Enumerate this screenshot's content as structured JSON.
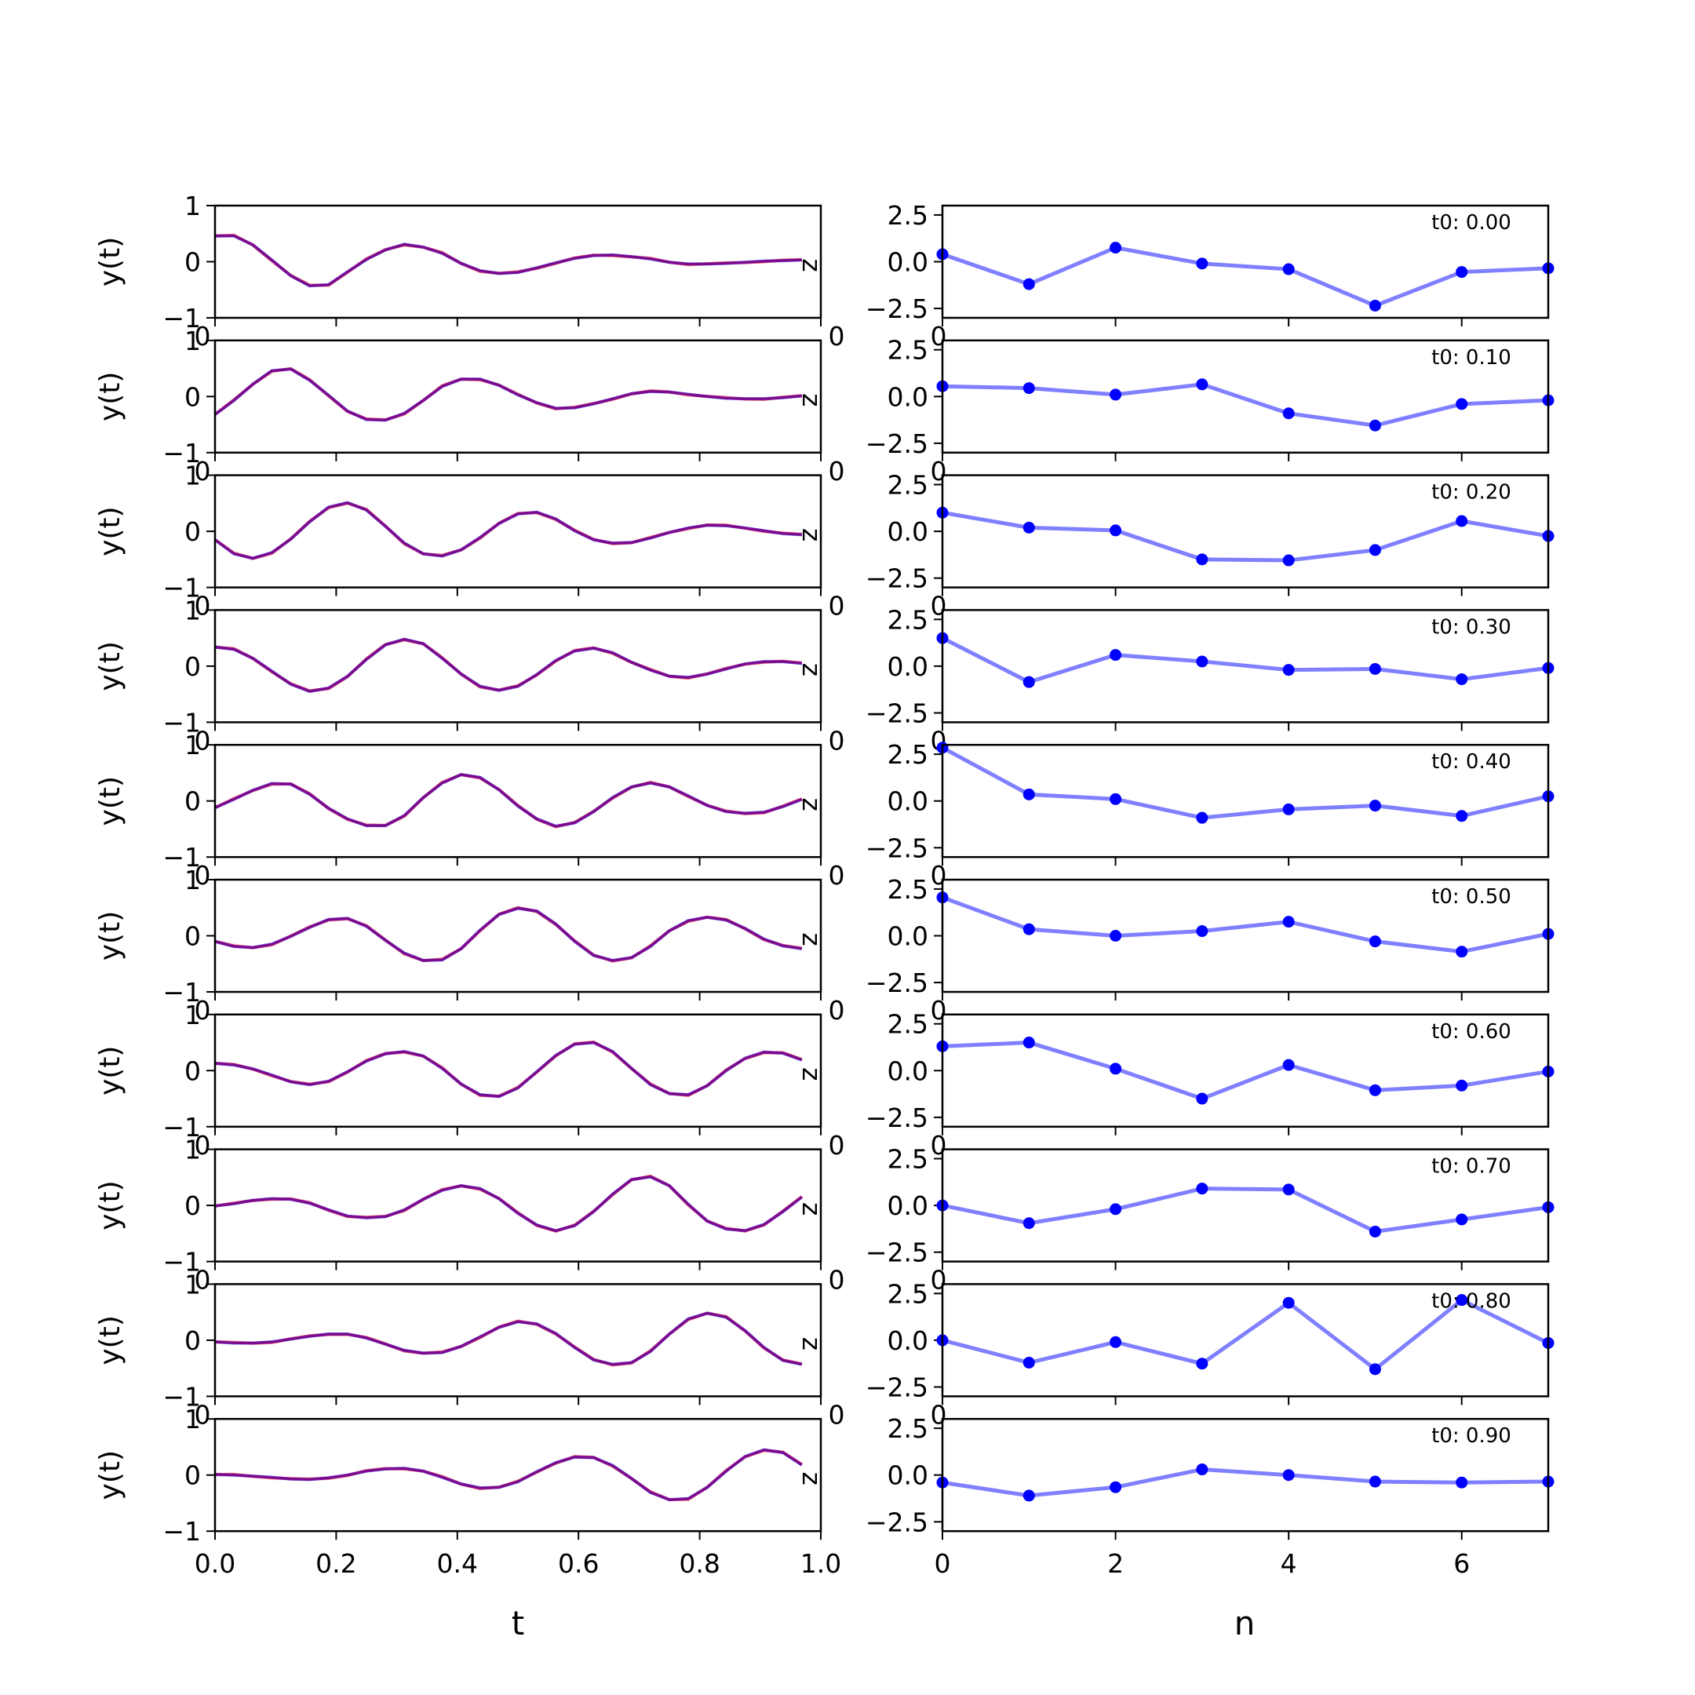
{
  "chart_data": {
    "type": "line",
    "left_panels": {
      "xlabel": "t",
      "ylabel": "y(t)",
      "xlim": [
        0.0,
        1.0
      ],
      "ylim": [
        -1,
        1
      ],
      "xticks": [
        "0.0",
        "0.2",
        "0.4",
        "0.6",
        "0.8",
        "1.0"
      ],
      "yticks": [
        "1",
        "0",
        "−1"
      ],
      "overlap_left_label": "0",
      "overlap_right_label": "0",
      "side_label": "z",
      "colors": {
        "first": "#0000ff",
        "second": "#ff0000",
        "blend": "#800080"
      },
      "rows": [
        {
          "y": [
            0.46,
            0.46,
            0.3,
            0.03,
            -0.25,
            -0.43,
            -0.41,
            -0.18,
            0.04,
            0.21,
            0.31,
            0.26,
            0.15,
            -0.03,
            -0.16,
            -0.21,
            -0.19,
            -0.11,
            -0.02,
            0.06,
            0.11,
            0.12,
            0.09,
            0.05,
            -0.01,
            -0.04,
            -0.04,
            -0.03,
            -0.01,
            0.01,
            0.02,
            0.03
          ]
        },
        {
          "y": [
            -0.32,
            -0.07,
            0.22,
            0.46,
            0.49,
            0.29,
            0.02,
            -0.26,
            -0.41,
            -0.42,
            -0.3,
            -0.07,
            0.18,
            0.31,
            0.31,
            0.2,
            0.03,
            -0.11,
            -0.21,
            -0.2,
            -0.13,
            -0.04,
            0.05,
            0.09,
            0.08,
            0.04,
            0.0,
            -0.03,
            -0.04,
            -0.04,
            -0.02,
            0.01
          ]
        },
        {
          "y": [
            -0.15,
            -0.4,
            -0.48,
            -0.38,
            -0.14,
            0.17,
            0.43,
            0.51,
            0.38,
            0.09,
            -0.21,
            -0.4,
            -0.44,
            -0.33,
            -0.11,
            0.14,
            0.31,
            0.34,
            0.22,
            0.01,
            -0.15,
            -0.21,
            -0.2,
            -0.12,
            -0.02,
            0.06,
            0.11,
            0.1,
            0.06,
            0.01,
            -0.04,
            -0.06
          ]
        },
        {
          "y": [
            0.34,
            0.3,
            0.14,
            -0.09,
            -0.32,
            -0.45,
            -0.39,
            -0.18,
            0.12,
            0.38,
            0.48,
            0.4,
            0.14,
            -0.14,
            -0.36,
            -0.43,
            -0.36,
            -0.15,
            0.1,
            0.27,
            0.32,
            0.24,
            0.07,
            -0.07,
            -0.18,
            -0.2,
            -0.14,
            -0.05,
            0.04,
            0.08,
            0.08,
            0.05
          ]
        },
        {
          "y": [
            -0.12,
            0.03,
            0.19,
            0.31,
            0.3,
            0.12,
            -0.13,
            -0.32,
            -0.44,
            -0.44,
            -0.26,
            0.06,
            0.32,
            0.47,
            0.42,
            0.2,
            -0.09,
            -0.32,
            -0.45,
            -0.39,
            -0.19,
            0.06,
            0.25,
            0.32,
            0.25,
            0.09,
            -0.08,
            -0.19,
            -0.22,
            -0.2,
            -0.1,
            0.03
          ]
        },
        {
          "y": [
            -0.1,
            -0.19,
            -0.21,
            -0.15,
            -0.01,
            0.15,
            0.29,
            0.31,
            0.17,
            -0.08,
            -0.31,
            -0.44,
            -0.43,
            -0.23,
            0.1,
            0.38,
            0.49,
            0.44,
            0.21,
            -0.1,
            -0.35,
            -0.44,
            -0.39,
            -0.19,
            0.09,
            0.27,
            0.33,
            0.28,
            0.13,
            -0.06,
            -0.18,
            -0.23
          ]
        },
        {
          "y": [
            0.13,
            0.1,
            0.03,
            -0.08,
            -0.2,
            -0.25,
            -0.19,
            -0.02,
            0.17,
            0.3,
            0.34,
            0.26,
            0.04,
            -0.24,
            -0.43,
            -0.46,
            -0.31,
            -0.02,
            0.27,
            0.47,
            0.5,
            0.34,
            0.04,
            -0.25,
            -0.41,
            -0.43,
            -0.27,
            0.0,
            0.22,
            0.33,
            0.31,
            0.19
          ]
        },
        {
          "y": [
            -0.01,
            0.03,
            0.09,
            0.12,
            0.11,
            0.04,
            -0.08,
            -0.19,
            -0.22,
            -0.2,
            -0.08,
            0.11,
            0.27,
            0.35,
            0.3,
            0.12,
            -0.14,
            -0.35,
            -0.45,
            -0.36,
            -0.11,
            0.2,
            0.46,
            0.51,
            0.35,
            0.02,
            -0.28,
            -0.42,
            -0.45,
            -0.34,
            -0.11,
            0.15
          ]
        },
        {
          "y": [
            -0.03,
            -0.05,
            -0.05,
            -0.03,
            0.02,
            0.07,
            0.11,
            0.11,
            0.04,
            -0.07,
            -0.18,
            -0.23,
            -0.22,
            -0.11,
            0.06,
            0.23,
            0.33,
            0.29,
            0.12,
            -0.13,
            -0.35,
            -0.43,
            -0.4,
            -0.2,
            0.11,
            0.38,
            0.48,
            0.41,
            0.17,
            -0.13,
            -0.36,
            -0.43
          ]
        },
        {
          "y": [
            0.01,
            0.0,
            -0.02,
            -0.04,
            -0.07,
            -0.08,
            -0.05,
            0.0,
            0.07,
            0.11,
            0.12,
            0.07,
            -0.04,
            -0.16,
            -0.23,
            -0.22,
            -0.12,
            0.06,
            0.22,
            0.32,
            0.31,
            0.17,
            -0.06,
            -0.31,
            -0.44,
            -0.42,
            -0.22,
            0.07,
            0.33,
            0.45,
            0.4,
            0.18
          ]
        }
      ]
    },
    "right_panels": {
      "xlabel": "n",
      "xlim": [
        0,
        7
      ],
      "ylim": [
        -3,
        3
      ],
      "xticks": [
        "0",
        "2",
        "4",
        "6"
      ],
      "yticks": [
        "2.5",
        "0.0",
        "−2.5"
      ],
      "overlap_label": "0",
      "color": "#0000ff",
      "x": [
        0,
        1,
        2,
        3,
        4,
        5,
        6,
        7
      ],
      "rows": [
        {
          "label": "t0: 0.00",
          "y": [
            0.4,
            -1.2,
            0.75,
            -0.1,
            -0.4,
            -2.35,
            -0.55,
            -0.35
          ]
        },
        {
          "label": "t0: 0.10",
          "y": [
            0.55,
            0.45,
            0.1,
            0.65,
            -0.9,
            -1.55,
            -0.4,
            -0.2
          ]
        },
        {
          "label": "t0: 0.20",
          "y": [
            1.0,
            0.2,
            0.05,
            -1.5,
            -1.55,
            -1.0,
            0.55,
            -0.25
          ]
        },
        {
          "label": "t0: 0.30",
          "y": [
            1.5,
            -0.85,
            0.6,
            0.25,
            -0.2,
            -0.15,
            -0.7,
            -0.1
          ]
        },
        {
          "label": "t0: 0.40",
          "y": [
            2.85,
            0.35,
            0.1,
            -0.9,
            -0.45,
            -0.25,
            -0.8,
            0.25
          ]
        },
        {
          "label": "t0: 0.50",
          "y": [
            2.05,
            0.35,
            0.0,
            0.25,
            0.75,
            -0.3,
            -0.85,
            0.1
          ]
        },
        {
          "label": "t0: 0.60",
          "y": [
            1.3,
            1.5,
            0.1,
            -1.5,
            0.3,
            -1.05,
            -0.8,
            -0.05
          ]
        },
        {
          "label": "t0: 0.70",
          "y": [
            0.0,
            -0.95,
            -0.2,
            0.9,
            0.85,
            -1.4,
            -0.75,
            -0.1
          ]
        },
        {
          "label": "t0: 0.80",
          "y": [
            0.0,
            -1.2,
            -0.1,
            -1.25,
            2.0,
            -1.55,
            2.15,
            -0.15
          ]
        },
        {
          "label": "t0: 0.90",
          "y": [
            -0.4,
            -1.1,
            -0.65,
            0.3,
            0.0,
            -0.35,
            -0.4,
            -0.35
          ]
        }
      ]
    }
  }
}
